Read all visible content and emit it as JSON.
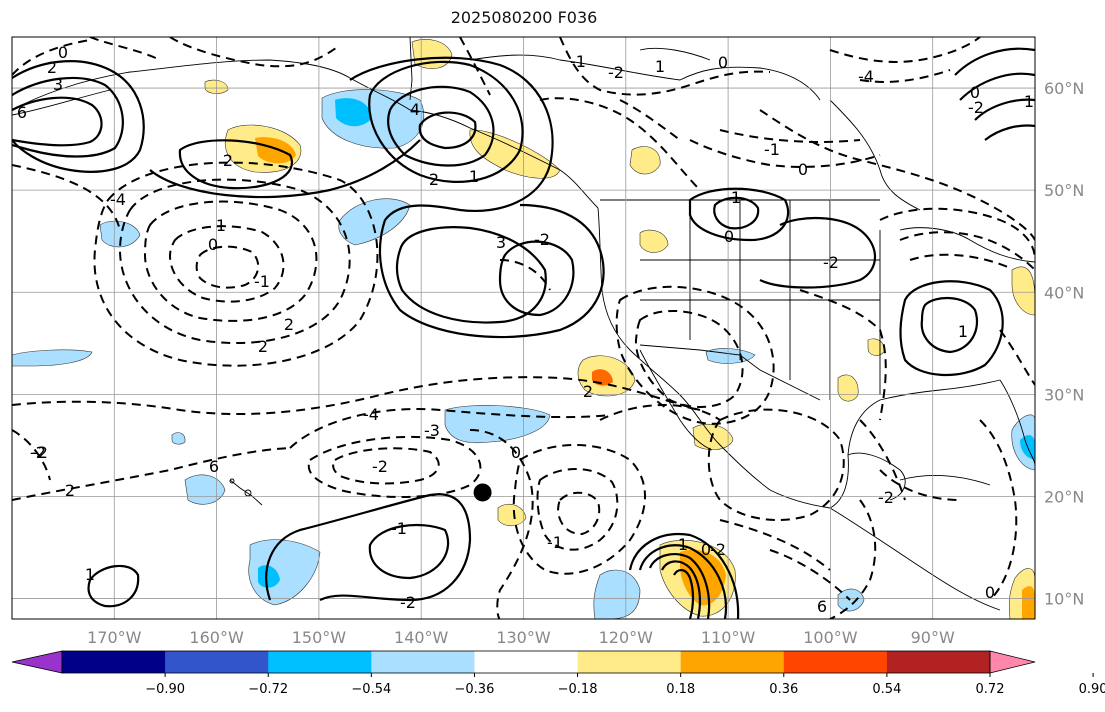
{
  "title": "2025080200 F036",
  "map": {
    "lon_range": [
      -180,
      -80
    ],
    "lat_range": [
      8,
      65
    ],
    "lon_ticks": [
      "170°W",
      "160°W",
      "150°W",
      "140°W",
      "130°W",
      "120°W",
      "110°W",
      "100°W",
      "90°W"
    ],
    "lat_ticks": [
      "10°N",
      "20°N",
      "30°N",
      "40°N",
      "50°N",
      "60°N"
    ],
    "marker": {
      "lon": -134,
      "lat": 20,
      "label": ""
    }
  },
  "contour_labels": [
    "0",
    "2",
    "3",
    "4",
    "6",
    "-4",
    "1",
    "2",
    "3",
    "-2",
    "-1",
    "0",
    "1",
    "2",
    "2",
    "-4",
    "-3",
    "-2",
    "-1",
    "-2",
    "1",
    "2",
    "1",
    "0",
    "-2",
    "1",
    "0",
    "0",
    "-1",
    "2",
    "1",
    "0",
    "-2",
    "-1",
    "0",
    "-2",
    "6",
    "1",
    "-2",
    "2",
    "-2",
    "-4",
    "0",
    "-1",
    "-2",
    "1",
    "-2",
    "6",
    "0"
  ],
  "colorbar": {
    "colors": [
      "#9933cc",
      "#000088",
      "#3355cc",
      "#00bfff",
      "#aadfff",
      "#ffffff",
      "#ffeb88",
      "#ffa500",
      "#ff4500",
      "#b22222",
      "#ff88aa"
    ],
    "tick_labels": [
      "−0.90",
      "−0.72",
      "−0.54",
      "−0.36",
      "−0.18",
      "0.18",
      "0.36",
      "0.54",
      "0.72",
      "0.90"
    ]
  }
}
